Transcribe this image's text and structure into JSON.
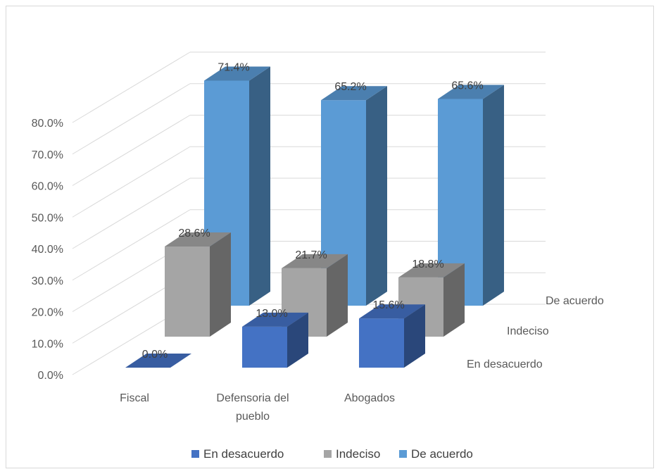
{
  "chart_data": {
    "type": "bar",
    "title": "",
    "categories": [
      "Fiscal",
      "Defensoria del pueblo",
      "Abogados"
    ],
    "series": [
      {
        "name": "En desacuerdo",
        "values": [
          0.0,
          13.0,
          15.6
        ],
        "labels": [
          "0.0%",
          "13.0%",
          "15.6%"
        ],
        "color": "#4472c4"
      },
      {
        "name": "Indeciso",
        "values": [
          28.6,
          21.7,
          18.8
        ],
        "labels": [
          "28.6%",
          "21.7%",
          "18.8%"
        ],
        "color": "#a5a5a5"
      },
      {
        "name": "De acuerdo",
        "values": [
          71.4,
          65.2,
          65.6
        ],
        "labels": [
          "71.4%",
          "65.2%",
          "65.6%"
        ],
        "color": "#5b9bd5"
      }
    ],
    "yticks": [
      "0.0%",
      "10.0%",
      "20.0%",
      "30.0%",
      "40.0%",
      "50.0%",
      "60.0%",
      "70.0%",
      "80.0%"
    ],
    "ylim": [
      0,
      80
    ],
    "grid": true,
    "legend_position": "bottom",
    "style": "3d-column"
  }
}
